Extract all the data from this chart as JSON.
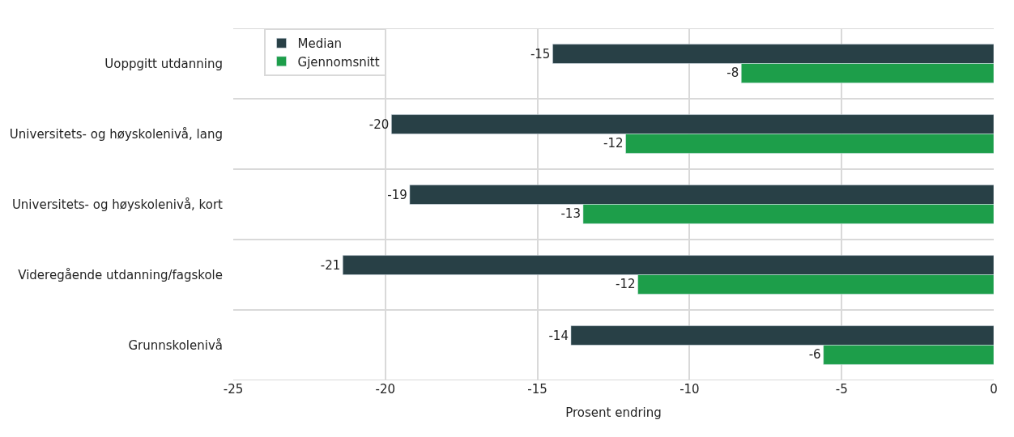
{
  "chart_data": {
    "type": "bar",
    "orientation": "horizontal",
    "xlabel": "Prosent endring",
    "categories": [
      "Uoppgitt utdanning",
      "Universitets- og høyskolenivå, lang",
      "Universitets- og høyskolenivå, kort",
      "Videregående utdanning/fagskole",
      "Grunnskolenivå"
    ],
    "series": [
      {
        "name": "Median",
        "color": "#284046",
        "values": [
          -14.5,
          -19.8,
          -19.2,
          -21.4,
          -13.9
        ],
        "value_labels": [
          "-15",
          "-20",
          "-19",
          "-21",
          "-14"
        ]
      },
      {
        "name": "Gjennomsnitt",
        "color": "#1d9e4a",
        "values": [
          -8.3,
          -12.1,
          -13.5,
          -11.7,
          -5.6
        ],
        "value_labels": [
          "-8",
          "-12",
          "-13",
          "-12",
          "-6"
        ]
      }
    ],
    "xlim": [
      -25,
      0
    ],
    "xticks": [
      -25,
      -20,
      -15,
      -10,
      -5,
      0
    ],
    "grid": true,
    "legend": "top left"
  }
}
